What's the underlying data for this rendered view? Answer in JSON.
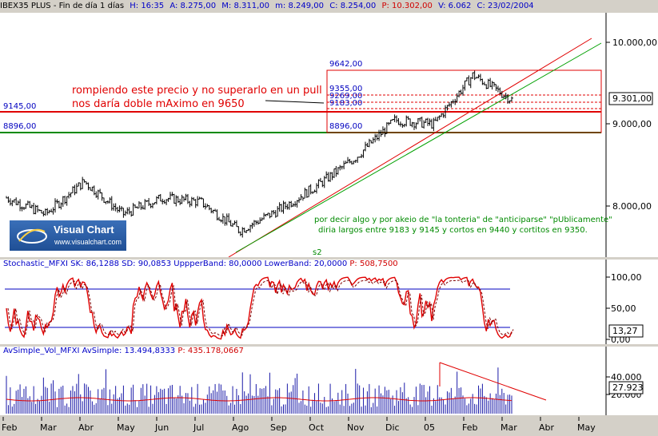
{
  "header": {
    "symbol": "IBEX35 PLUS - Fin de día 1 días",
    "H": "H: 16:35",
    "A": "A: 8.275,00",
    "M": "M: 8.311,00",
    "m": "m: 8.249,00",
    "C": "C: 8.254,00",
    "P": "P: 10.302,00",
    "V": "V: 6.062",
    "date": "C: 23/02/2004"
  },
  "annotations": {
    "red_note_line1": "rompiendo este precio y no superarlo en un pull",
    "red_note_line2": "nos daría doble mAximo en 9650",
    "green_note_line1": "por decir algo y por akeio de \"la tonteria\" de \"anticiparse\" \"pUblicamente\"",
    "green_note_line2": "diria largos entre 9183 y 9145 y cortos en 9440 y cortitos en 9350.",
    "s2": "s2",
    "lvl_9642": "9642,00",
    "lvl_9355": "9355,00",
    "lvl_9269": "9269,00",
    "lvl_9183": "9183,00",
    "lvl_9145": "9145,00",
    "lvl_8896a": "8896,00",
    "lvl_8896b": "8896,00"
  },
  "logo": {
    "title": "Visual Chart",
    "url": "www.visualchart.com"
  },
  "price_scale": {
    "labels": [
      "10.000,00",
      "9.000,00",
      "8.000,00"
    ],
    "current": "9.301,00"
  },
  "stoch": {
    "title_name": "Stochastic_MFXI",
    "title_sk": "SK: 86,1288",
    "title_sd": "SD: 90,0853",
    "title_upper": "UppperBand: 80,0000",
    "title_lower": "LowerBand: 20,0000",
    "title_p": "P: 508,7500",
    "labels": [
      "100,00",
      "50,00",
      "0,00"
    ],
    "current": "13,27"
  },
  "volume": {
    "title": "AvSimple_Vol_MFXI AvSimple: 13.494,8333",
    "title_p": "P: 435.178,0667",
    "labels": [
      "40.000",
      "20.000"
    ],
    "current": "27.923"
  },
  "x_axis": [
    "Feb",
    "Mar",
    "Abr",
    "May",
    "Jun",
    "Jul",
    "Ago",
    "Sep",
    "Oct",
    "Nov",
    "Dic",
    "05",
    "Feb",
    "Mar",
    "Abr",
    "May"
  ],
  "colors": {
    "price": "#000000",
    "red": "#e00000",
    "green": "#008a00",
    "blue": "#0000c0",
    "volume": "#1a1aa8"
  },
  "chart_data": {
    "type": "ohlc",
    "y_unit": "index points",
    "ylim": [
      7500,
      10300
    ],
    "levels": [
      9642,
      9355,
      9269,
      9183,
      9145,
      8896
    ],
    "monthly_closes": {
      "x": [
        "Feb",
        "Mar",
        "Abr",
        "May",
        "Jun",
        "Jul",
        "Ago",
        "Sep",
        "Oct",
        "Nov",
        "Dic",
        "05",
        "Feb",
        "Mar"
      ],
      "y": [
        8100,
        7900,
        8300,
        7900,
        8100,
        8050,
        7700,
        7950,
        8250,
        8600,
        9050,
        9000,
        9600,
        9300
      ]
    }
  }
}
